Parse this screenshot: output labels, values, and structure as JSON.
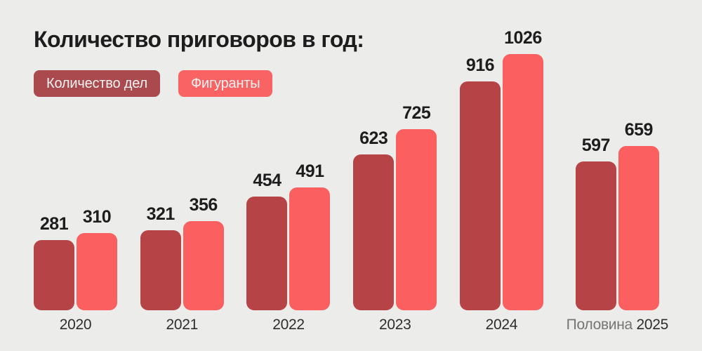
{
  "title": "Количество приговоров в год:",
  "legend": [
    {
      "label": "Количество дел",
      "color": "#ab4a4e"
    },
    {
      "label": "Фигуранты",
      "color": "#f96363"
    }
  ],
  "colors": {
    "background": "#ececeb",
    "title_text": "#1d1d1d",
    "value_text": "#1d1d1d",
    "year_text": "#2e2e2e",
    "category_prefix_text": "#757575",
    "bar_cases": "#b64447",
    "bar_defendants": "#fc5f5f"
  },
  "chart_data": {
    "type": "bar",
    "title": "Количество приговоров в год:",
    "categories": [
      "2020",
      "2021",
      "2022",
      "2023",
      "2024",
      "Половина 2025"
    ],
    "series": [
      {
        "name": "Количество дел",
        "color": "#b64447",
        "values": [
          281,
          321,
          454,
          623,
          916,
          597
        ]
      },
      {
        "name": "Фигуранты",
        "color": "#fc5f5f",
        "values": [
          310,
          356,
          491,
          725,
          1026,
          659
        ]
      }
    ],
    "ylim": [
      0,
      1026
    ],
    "xlabel": "",
    "ylabel": "",
    "grid": false,
    "axes_visible": false,
    "legend_position": "top-left",
    "value_labels": true
  }
}
